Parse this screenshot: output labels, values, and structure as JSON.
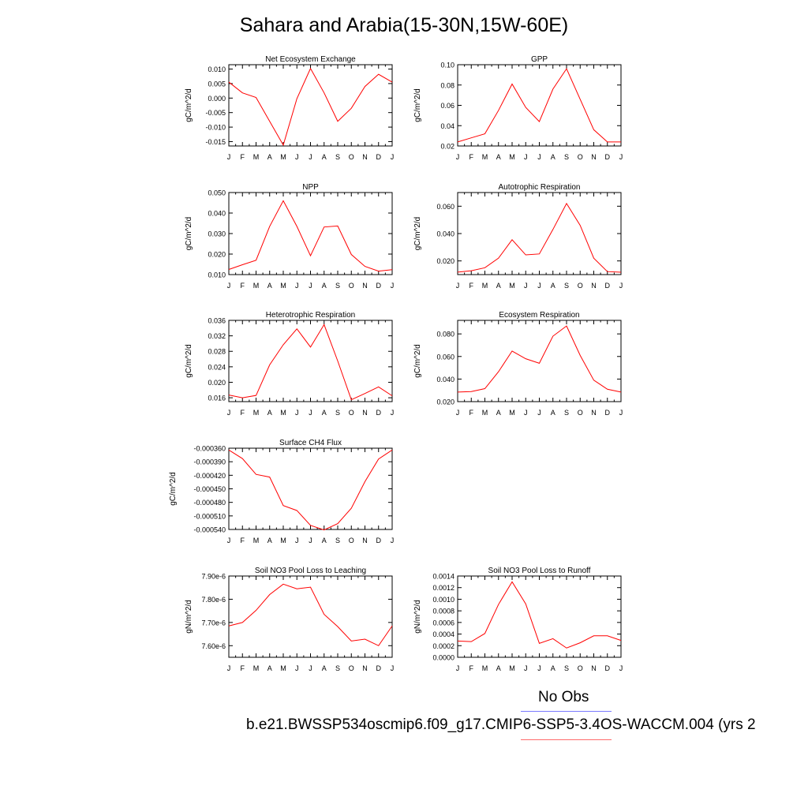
{
  "title": "Sahara and Arabia(15-30N,15W-60E)",
  "legend": {
    "obs_label": "No Obs",
    "case_label": "b.e21.BWSSP534oscmip6.f09_g17.CMIP6-SSP5-3.4OS-WACCM.004 (yrs 2",
    "obs_color": "#7a7aff",
    "case_color": "#ff0000"
  },
  "chart_data": [
    {
      "type": "line",
      "title": "Net Ecosystem Exchange",
      "ylabel": "gC/m^2/d",
      "categories": [
        "J",
        "F",
        "M",
        "A",
        "M",
        "J",
        "J",
        "A",
        "S",
        "O",
        "N",
        "D",
        "J"
      ],
      "ylim": [
        -0.0165,
        0.0115
      ],
      "yticks": [
        -0.015,
        -0.01,
        -0.005,
        0.0,
        0.005,
        0.01
      ],
      "ytick_labels": [
        "-0.015",
        "-0.010",
        "-0.005",
        "0.000",
        "0.005",
        "0.010"
      ],
      "series": [
        {
          "values": [
            0.0055,
            0.0018,
            0.0002,
            -0.008,
            -0.0162,
            -0.0002,
            0.0102,
            0.0018,
            -0.008,
            -0.0035,
            0.004,
            0.0082,
            0.0055
          ]
        }
      ]
    },
    {
      "type": "line",
      "title": "GPP",
      "ylabel": "gC/m^2/d",
      "categories": [
        "J",
        "F",
        "M",
        "A",
        "M",
        "J",
        "J",
        "A",
        "S",
        "O",
        "N",
        "D",
        "J"
      ],
      "ylim": [
        0.02,
        0.1
      ],
      "yticks": [
        0.02,
        0.04,
        0.06,
        0.08,
        0.1
      ],
      "ytick_labels": [
        "0.02",
        "0.04",
        "0.06",
        "0.08",
        "0.10"
      ],
      "series": [
        {
          "values": [
            0.024,
            0.028,
            0.032,
            0.055,
            0.081,
            0.058,
            0.044,
            0.076,
            0.096,
            0.066,
            0.036,
            0.024,
            0.024
          ]
        }
      ]
    },
    {
      "type": "line",
      "title": "NPP",
      "ylabel": "gC/m^2/d",
      "categories": [
        "J",
        "F",
        "M",
        "A",
        "M",
        "J",
        "J",
        "A",
        "S",
        "O",
        "N",
        "D",
        "J"
      ],
      "ylim": [
        0.01,
        0.05
      ],
      "yticks": [
        0.01,
        0.02,
        0.03,
        0.04,
        0.05
      ],
      "ytick_labels": [
        "0.010",
        "0.020",
        "0.030",
        "0.040",
        "0.050"
      ],
      "series": [
        {
          "values": [
            0.0125,
            0.0148,
            0.017,
            0.0335,
            0.046,
            0.0335,
            0.0192,
            0.0332,
            0.0337,
            0.0198,
            0.014,
            0.0117,
            0.0124
          ]
        }
      ]
    },
    {
      "type": "line",
      "title": "Autotrophic Respiration",
      "ylabel": "gC/m^2/d",
      "categories": [
        "J",
        "F",
        "M",
        "A",
        "M",
        "J",
        "J",
        "A",
        "S",
        "O",
        "N",
        "D",
        "J"
      ],
      "ylim": [
        0.01,
        0.07
      ],
      "yticks": [
        0.02,
        0.04,
        0.06
      ],
      "ytick_labels": [
        "0.020",
        "0.040",
        "0.060"
      ],
      "series": [
        {
          "values": [
            0.0118,
            0.0128,
            0.015,
            0.022,
            0.0355,
            0.0244,
            0.0251,
            0.043,
            0.062,
            0.046,
            0.022,
            0.0122,
            0.0117
          ]
        }
      ]
    },
    {
      "type": "line",
      "title": "Heterotrophic Respiration",
      "ylabel": "gC/m^2/d",
      "categories": [
        "J",
        "F",
        "M",
        "A",
        "M",
        "J",
        "J",
        "A",
        "S",
        "O",
        "N",
        "D",
        "J"
      ],
      "ylim": [
        0.015,
        0.036
      ],
      "yticks": [
        0.016,
        0.02,
        0.024,
        0.028,
        0.032,
        0.036
      ],
      "ytick_labels": [
        "0.016",
        "0.020",
        "0.024",
        "0.028",
        "0.032",
        "0.036"
      ],
      "series": [
        {
          "values": [
            0.0167,
            0.016,
            0.0166,
            0.0245,
            0.0297,
            0.0338,
            0.0291,
            0.0349,
            0.0255,
            0.0155,
            0.0171,
            0.0188,
            0.0165
          ]
        }
      ]
    },
    {
      "type": "line",
      "title": "Ecosystem Respiration",
      "ylabel": "gC/m^2/d",
      "categories": [
        "J",
        "F",
        "M",
        "A",
        "M",
        "J",
        "J",
        "A",
        "S",
        "O",
        "N",
        "D",
        "J"
      ],
      "ylim": [
        0.02,
        0.092
      ],
      "yticks": [
        0.02,
        0.04,
        0.06,
        0.08
      ],
      "ytick_labels": [
        "0.020",
        "0.040",
        "0.060",
        "0.080"
      ],
      "series": [
        {
          "values": [
            0.0285,
            0.0289,
            0.0315,
            0.0465,
            0.0648,
            0.058,
            0.054,
            0.078,
            0.087,
            0.061,
            0.039,
            0.031,
            0.0285
          ]
        }
      ]
    },
    {
      "type": "line",
      "title": "Surface CH4 Flux",
      "ylabel": "gC/m^2/d",
      "categories": [
        "J",
        "F",
        "M",
        "A",
        "M",
        "J",
        "J",
        "A",
        "S",
        "O",
        "N",
        "D",
        "J"
      ],
      "ylim": [
        -0.00054,
        -0.00036
      ],
      "yticks": [
        -0.00036,
        -0.00039,
        -0.00042,
        -0.00045,
        -0.00048,
        -0.00051,
        -0.00054
      ],
      "ytick_labels": [
        "-0.000360",
        "-0.000390",
        "-0.000420",
        "-0.000450",
        "-0.000480",
        "-0.000510",
        "-0.000540"
      ],
      "series": [
        {
          "values": [
            -0.000364,
            -0.000383,
            -0.000418,
            -0.000424,
            -0.000487,
            -0.000498,
            -0.000531,
            -0.000541,
            -0.000527,
            -0.000493,
            -0.000434,
            -0.000384,
            -0.000364
          ]
        }
      ]
    },
    {
      "type": "line",
      "title": "Soil NO3 Pool Loss to Leaching",
      "ylabel": "gN/m^2/d",
      "categories": [
        "J",
        "F",
        "M",
        "A",
        "M",
        "J",
        "J",
        "A",
        "S",
        "O",
        "N",
        "D",
        "J"
      ],
      "ylim": [
        7.55e-06,
        7.9e-06
      ],
      "yticks": [
        7.6e-06,
        7.7e-06,
        7.8e-06,
        7.9e-06
      ],
      "ytick_labels": [
        "7.60e-6",
        "7.70e-6",
        "7.80e-6",
        "7.90e-6"
      ],
      "series": [
        {
          "values": [
            7.685e-06,
            7.7e-06,
            7.752e-06,
            7.82e-06,
            7.865e-06,
            7.845e-06,
            7.852e-06,
            7.735e-06,
            7.682e-06,
            7.62e-06,
            7.628e-06,
            7.6e-06,
            7.685e-06
          ]
        }
      ]
    },
    {
      "type": "line",
      "title": "Soil NO3 Pool Loss to Runoff",
      "ylabel": "gN/m^2/d",
      "categories": [
        "J",
        "F",
        "M",
        "A",
        "M",
        "J",
        "J",
        "A",
        "S",
        "O",
        "N",
        "D",
        "J"
      ],
      "ylim": [
        0,
        0.0014
      ],
      "yticks": [
        0,
        0.0002,
        0.0004,
        0.0006,
        0.0008,
        0.001,
        0.0012,
        0.0014
      ],
      "ytick_labels": [
        "0.0000",
        "0.0002",
        "0.0004",
        "0.0006",
        "0.0008",
        "0.0010",
        "0.0012",
        "0.0014"
      ],
      "series": [
        {
          "values": [
            0.00028,
            0.00027,
            0.00041,
            0.00091,
            0.0013,
            0.00092,
            0.00024,
            0.00032,
            0.00016,
            0.00025,
            0.00037,
            0.00037,
            0.00029
          ]
        }
      ]
    }
  ]
}
